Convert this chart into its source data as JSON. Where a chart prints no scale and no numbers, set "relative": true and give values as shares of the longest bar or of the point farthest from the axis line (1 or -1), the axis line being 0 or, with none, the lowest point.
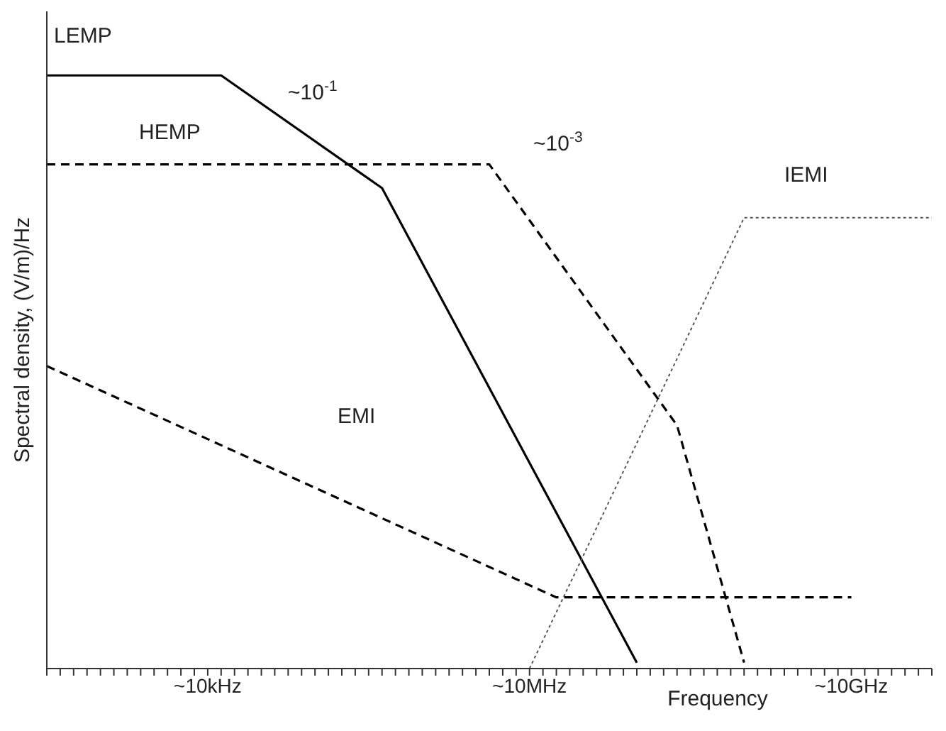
{
  "chart_data": {
    "type": "line",
    "relative": true,
    "ylabel": "Spectral density, (V/m)/Hz",
    "xlabel": "Frequency",
    "grid": false,
    "legend": false,
    "marker": "none",
    "annotations": [
      "~10$^{-1}$",
      "~10$^{-3}$"
    ],
    "categories": [
      null,
      null,
      null,
      null,
      null,
      null,
      null,
      null,
      null,
      null,
      null,
      null,
      "~10kHz",
      null,
      null,
      null,
      null,
      null,
      null,
      null,
      null,
      null,
      null,
      null,
      null,
      null,
      null,
      null,
      null,
      null,
      null,
      null,
      null,
      null,
      null,
      null,
      "~10MHz",
      null,
      null,
      null,
      null,
      null,
      null,
      null,
      null,
      null,
      null,
      null,
      null,
      null,
      null,
      null,
      null,
      null,
      null,
      null,
      null,
      null,
      null,
      null,
      "~10GHz",
      null,
      null,
      null,
      null,
      null,
      null
    ],
    "series": [
      {
        "name": "LEMP",
        "color": "#000000",
        "line_style": "solid",
        "values": [
          1,
          null,
          null,
          null,
          null,
          null,
          null,
          null,
          null,
          null,
          null,
          null,
          null,
          1,
          null,
          null,
          null,
          null,
          null,
          null,
          null,
          null,
          null,
          null,
          null,
          0.81,
          null,
          null,
          null,
          null,
          null,
          null,
          null,
          null,
          null,
          null,
          null,
          null,
          null,
          null,
          null,
          null,
          null,
          null,
          0.01,
          null,
          null,
          null,
          null,
          null,
          null,
          null,
          null,
          null,
          null,
          null,
          null,
          null,
          null,
          null,
          null,
          null,
          null,
          null,
          null,
          null,
          null
        ]
      },
      {
        "name": "HEMP",
        "color": "#000000",
        "line_style": "dashed",
        "values": [
          0.85,
          null,
          null,
          null,
          null,
          null,
          null,
          null,
          null,
          null,
          null,
          null,
          null,
          null,
          null,
          null,
          null,
          null,
          null,
          null,
          null,
          null,
          null,
          null,
          null,
          null,
          null,
          null,
          null,
          null,
          null,
          null,
          null,
          0.85,
          null,
          null,
          null,
          null,
          null,
          null,
          null,
          null,
          null,
          null,
          null,
          null,
          null,
          0.41,
          null,
          null,
          null,
          null,
          0.01,
          null,
          null,
          null,
          null,
          null,
          null,
          null,
          null,
          null,
          null,
          null,
          null,
          null,
          null
        ]
      },
      {
        "name": "EMI",
        "color": "#000000",
        "line_style": "dashed",
        "values": [
          0.51,
          null,
          null,
          null,
          null,
          null,
          null,
          null,
          null,
          null,
          null,
          null,
          null,
          null,
          null,
          null,
          null,
          null,
          null,
          null,
          null,
          null,
          null,
          null,
          null,
          null,
          null,
          null,
          null,
          null,
          null,
          null,
          null,
          null,
          null,
          null,
          null,
          null,
          0.12,
          null,
          null,
          null,
          null,
          null,
          null,
          null,
          null,
          null,
          null,
          null,
          null,
          null,
          null,
          null,
          null,
          null,
          null,
          null,
          null,
          null,
          0.12,
          null,
          null,
          null,
          null,
          null,
          null
        ]
      },
      {
        "name": "IEMI",
        "color": "#555555",
        "line_style": "dotted",
        "values": [
          null,
          null,
          null,
          null,
          null,
          null,
          null,
          null,
          null,
          null,
          null,
          null,
          null,
          null,
          null,
          null,
          null,
          null,
          null,
          null,
          null,
          null,
          null,
          null,
          null,
          null,
          null,
          null,
          null,
          null,
          null,
          null,
          null,
          null,
          null,
          null,
          0,
          null,
          null,
          null,
          null,
          null,
          null,
          null,
          null,
          null,
          null,
          null,
          null,
          null,
          null,
          null,
          0.76,
          null,
          null,
          null,
          null,
          null,
          null,
          null,
          null,
          null,
          null,
          null,
          null,
          null,
          0.76
        ]
      }
    ]
  }
}
